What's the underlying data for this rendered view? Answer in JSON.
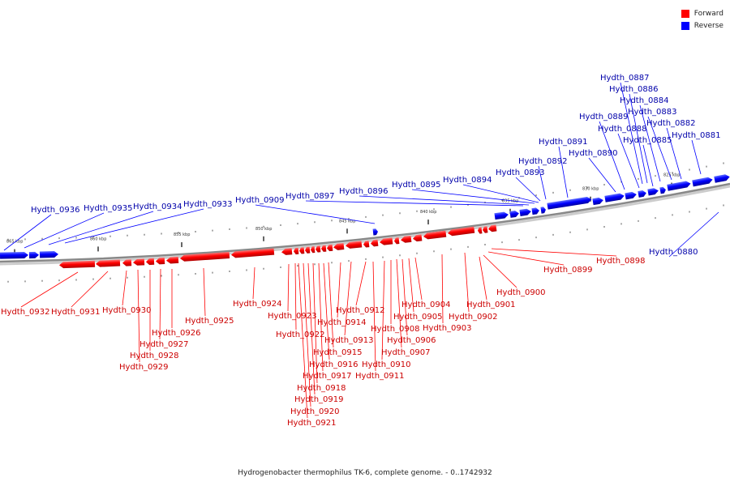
{
  "caption": "Hydrogenobacter thermophilus TK-6, complete genome. - 0..1742932",
  "legend": [
    {
      "label": "Forward",
      "color": "#ff0000"
    },
    {
      "label": "Reverse",
      "color": "#0000ff"
    }
  ],
  "colors": {
    "forward": "#ff0000",
    "reverse": "#0000ff",
    "backbone": "#888888",
    "forward_label": "#cc0000",
    "reverse_label": "#0000aa"
  },
  "ticks": [
    "825 kbp",
    "830 kbp",
    "835 kbp",
    "840 kbp",
    "845 kbp",
    "850 kbp",
    "855 kbp",
    "860 kbp",
    "865 kbp"
  ],
  "genes": {
    "reverse": [
      "Hydth_0880",
      "Hydth_0881",
      "Hydth_0882",
      "Hydth_0883",
      "Hydth_0884",
      "Hydth_0885",
      "Hydth_0886",
      "Hydth_0887",
      "Hydth_0888",
      "Hydth_0889",
      "Hydth_0890",
      "Hydth_0891",
      "Hydth_0892",
      "Hydth_0893",
      "Hydth_0894",
      "Hydth_0895",
      "Hydth_0896",
      "Hydth_0897",
      "Hydth_0909",
      "Hydth_0933",
      "Hydth_0934",
      "Hydth_0935",
      "Hydth_0936"
    ],
    "forward": [
      "Hydth_0898",
      "Hydth_0899",
      "Hydth_0900",
      "Hydth_0901",
      "Hydth_0902",
      "Hydth_0903",
      "Hydth_0904",
      "Hydth_0905",
      "Hydth_0906",
      "Hydth_0907",
      "Hydth_0908",
      "Hydth_0910",
      "Hydth_0911",
      "Hydth_0912",
      "Hydth_0913",
      "Hydth_0914",
      "Hydth_0915",
      "Hydth_0916",
      "Hydth_0917",
      "Hydth_0918",
      "Hydth_0919",
      "Hydth_0920",
      "Hydth_0921",
      "Hydth_0922",
      "Hydth_0923",
      "Hydth_0924",
      "Hydth_0925",
      "Hydth_0926",
      "Hydth_0927",
      "Hydth_0928",
      "Hydth_0929",
      "Hydth_0930",
      "Hydth_0931",
      "Hydth_0932"
    ]
  }
}
